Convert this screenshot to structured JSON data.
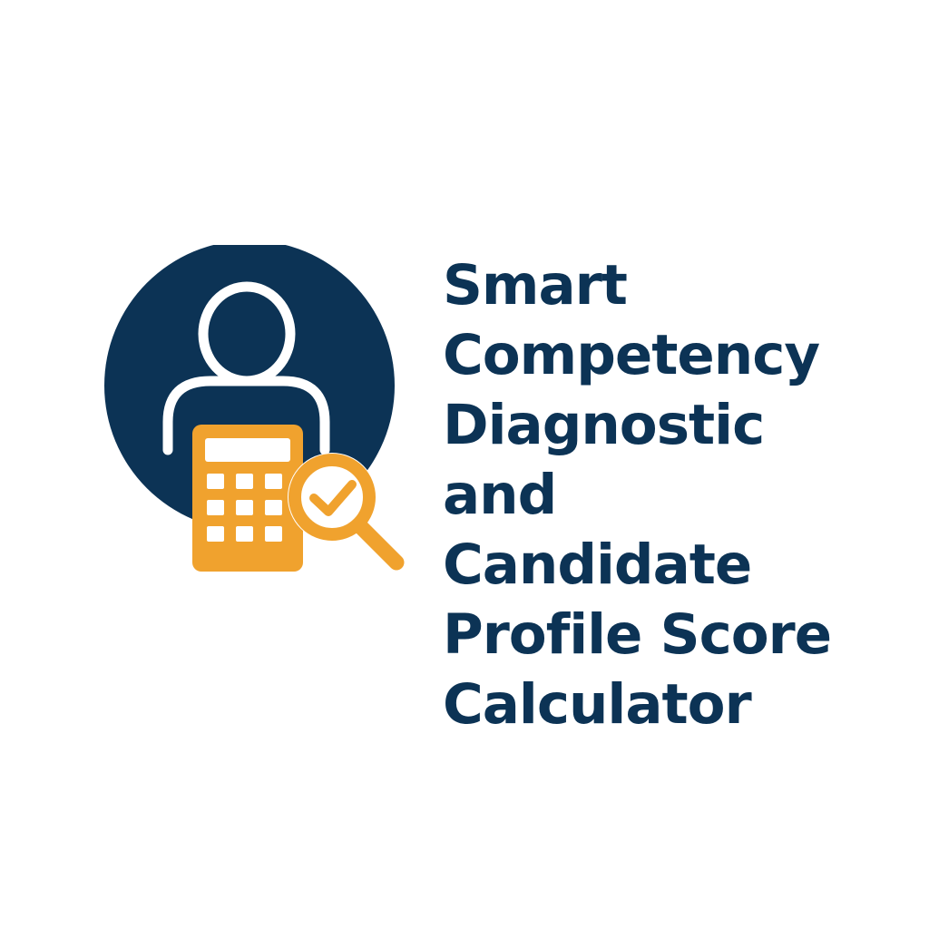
{
  "logo": {
    "title_lines": [
      "Smart",
      "Competency",
      "Diagnostic",
      "and",
      "Candidate",
      "Profile Score",
      "Calculator"
    ],
    "icons": [
      "person-icon",
      "calculator-icon",
      "magnifier-check-icon"
    ]
  },
  "colors": {
    "navy": "#0c3355",
    "orange": "#f0a22e",
    "white": "#ffffff",
    "background": "#ffffff"
  }
}
